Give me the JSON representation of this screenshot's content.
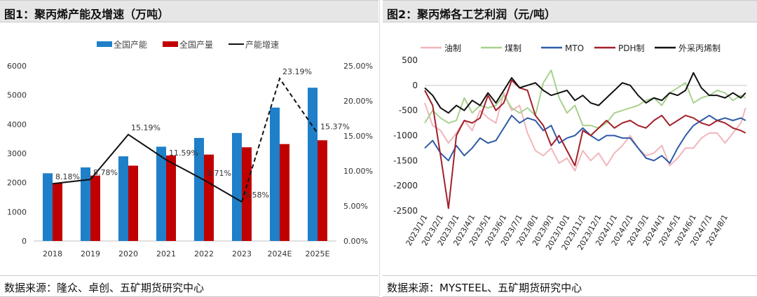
{
  "left_panel": {
    "title": "图1：聚丙烯产能及增速（万吨）",
    "source": "数据来源：隆众、卓创、五矿期货研究中心"
  },
  "right_panel": {
    "title": "图2：聚丙烯各工艺利润（元/吨）",
    "source": "数据来源：MYSTEEL、五矿期货研究中心"
  },
  "colors": {
    "capacity": "#1f7fc9",
    "output": "#c00000",
    "growth": "#111111",
    "oil": "#f2b5bb",
    "coal": "#a9d18e",
    "mto": "#2e5aa8",
    "pdh": "#a3202a",
    "outsource": "#111111"
  },
  "chart_data": [
    {
      "type": "bar",
      "categories": [
        "2018",
        "2019",
        "2020",
        "2021",
        "2022",
        "2023",
        "2024E",
        "2025E"
      ],
      "series": [
        {
          "name": "全国产能",
          "kind": "bar",
          "axis": "left",
          "values": [
            2320,
            2520,
            2900,
            3230,
            3530,
            3700,
            4570,
            5250
          ]
        },
        {
          "name": "全国产量",
          "kind": "bar",
          "axis": "left",
          "values": [
            1980,
            2240,
            2580,
            2930,
            2960,
            3210,
            3320,
            3450
          ]
        },
        {
          "name": "产能增速",
          "kind": "line",
          "axis": "right",
          "values": [
            8.18,
            8.78,
            15.19,
            11.59,
            8.71,
            5.58,
            23.19,
            15.37
          ],
          "labels": [
            "8.18%",
            "8.78%",
            "15.19%",
            "11.59%",
            "8.71%",
            "5.58%",
            "23.19%",
            "15.37%"
          ],
          "dashed_from_index": 5
        }
      ],
      "ylim_left": [
        0,
        6000
      ],
      "yticks_left": [
        "0",
        "1000",
        "2000",
        "3000",
        "4000",
        "5000",
        "6000"
      ],
      "ylim_right": [
        0,
        25
      ],
      "yticks_right": [
        "0.00%",
        "5.00%",
        "10.00%",
        "15.00%",
        "20.00%",
        "25.00%"
      ],
      "legend_position": "top"
    },
    {
      "type": "line",
      "x_ticks": [
        "2023/1/1",
        "2023/2/1",
        "2023/3/1",
        "2023/4/1",
        "2023/5/1",
        "2023/6/1",
        "2023/7/1",
        "2023/8/1",
        "2023/9/1",
        "2023/10/1",
        "2023/11/1",
        "2023/12/1",
        "2024/1/1",
        "2024/2/1",
        "2024/3/1",
        "2024/4/1",
        "2024/5/1",
        "2024/6/1",
        "2024/7/1",
        "2024/8/1"
      ],
      "x_range": [
        0,
        20.4
      ],
      "ylim": [
        -2500,
        500
      ],
      "yticks": [
        "500",
        "0",
        "-500",
        "-1000",
        "-1500",
        "-2000",
        "-2500"
      ],
      "legend_position": "top",
      "series": [
        {
          "name": "油制",
          "x": [
            0,
            0.5,
            1,
            1.5,
            2,
            2.5,
            3,
            3.5,
            4,
            4.5,
            5,
            5.5,
            6,
            6.5,
            7,
            7.5,
            8,
            8.5,
            9,
            9.5,
            10,
            10.5,
            11,
            11.5,
            12,
            12.5,
            13,
            13.5,
            14,
            14.5,
            15,
            15.5,
            16,
            16.5,
            17,
            17.5,
            18,
            18.5,
            19,
            19.5,
            20,
            20.3
          ],
          "values": [
            -350,
            -800,
            -900,
            -1150,
            -950,
            -700,
            -900,
            -500,
            -650,
            -750,
            -150,
            -500,
            -400,
            -950,
            -1300,
            -1400,
            -1250,
            -1550,
            -1450,
            -1700,
            -1300,
            -1500,
            -1350,
            -1600,
            -1350,
            -1200,
            -1000,
            -1250,
            -1400,
            -1350,
            -1200,
            -1600,
            -1450,
            -1250,
            -1250,
            -1050,
            -950,
            -950,
            -1150,
            -950,
            -750,
            -450
          ]
        },
        {
          "name": "煤制",
          "x": [
            0,
            0.5,
            1,
            1.5,
            2,
            2.5,
            3,
            3.5,
            4,
            4.5,
            5,
            5.5,
            6,
            6.5,
            7,
            7.5,
            8,
            8.5,
            9,
            9.5,
            10,
            10.5,
            11,
            11.5,
            12,
            12.5,
            13,
            13.5,
            14,
            14.5,
            15,
            15.5,
            16,
            16.5,
            17,
            17.5,
            18,
            18.5,
            19,
            19.5,
            20,
            20.3
          ],
          "values": [
            -750,
            -500,
            -650,
            -750,
            -700,
            -250,
            -550,
            -400,
            -450,
            -400,
            -200,
            -450,
            -550,
            -450,
            -600,
            50,
            300,
            -250,
            -550,
            -400,
            -800,
            -800,
            -850,
            -750,
            -550,
            -500,
            -450,
            -400,
            -300,
            -250,
            -400,
            -150,
            -50,
            50,
            -350,
            -250,
            -200,
            -100,
            -150,
            -300,
            -200,
            -250
          ]
        },
        {
          "name": "MTO",
          "x": [
            0,
            0.5,
            1,
            1.5,
            2,
            2.5,
            3,
            3.5,
            4,
            4.5,
            5,
            5.5,
            6,
            6.5,
            7,
            7.5,
            8,
            8.5,
            9,
            9.5,
            10,
            10.5,
            11,
            11.5,
            12,
            12.5,
            13,
            13.5,
            14,
            14.5,
            15,
            15.5,
            16,
            16.5,
            17,
            17.5,
            18,
            18.5,
            19,
            19.5,
            20,
            20.3
          ],
          "values": [
            -1250,
            -1100,
            -1350,
            -1500,
            -1200,
            -1400,
            -1250,
            -1050,
            -1150,
            -1100,
            -850,
            -600,
            -750,
            -650,
            -700,
            -900,
            -800,
            -1150,
            -1050,
            -1000,
            -850,
            -1000,
            -1100,
            -1000,
            -1000,
            -1050,
            -1050,
            -1250,
            -1450,
            -1500,
            -1400,
            -1550,
            -1250,
            -1000,
            -800,
            -700,
            -600,
            -700,
            -650,
            -700,
            -650,
            -700
          ]
        },
        {
          "name": "PDH制",
          "x": [
            0,
            0.5,
            1,
            1.5,
            2,
            2.5,
            3,
            3.5,
            4,
            4.5,
            5,
            5.5,
            6,
            6.5,
            7,
            7.5,
            8,
            8.5,
            9,
            9.5,
            10,
            10.5,
            11,
            11.5,
            12,
            12.5,
            13,
            13.5,
            14,
            14.5,
            15,
            15.5,
            16,
            16.5,
            17,
            17.5,
            18,
            18.5,
            19,
            19.5,
            20,
            20.3
          ],
          "values": [
            -100,
            -400,
            -1400,
            -2450,
            -1000,
            -700,
            -750,
            -650,
            -200,
            -500,
            -350,
            100,
            -50,
            -100,
            -600,
            -800,
            -1200,
            -1000,
            -1300,
            -1600,
            -900,
            -1000,
            -850,
            -700,
            -850,
            -750,
            -700,
            -800,
            -850,
            -700,
            -600,
            -800,
            -700,
            -600,
            -650,
            -750,
            -800,
            -700,
            -750,
            -850,
            -900,
            -950
          ]
        },
        {
          "name": "外采丙烯制",
          "x": [
            0,
            0.5,
            1,
            1.5,
            2,
            2.5,
            3,
            3.5,
            4,
            4.5,
            5,
            5.5,
            6,
            6.5,
            7,
            7.5,
            8,
            8.5,
            9,
            9.5,
            10,
            10.5,
            11,
            11.5,
            12,
            12.5,
            13,
            13.5,
            14,
            14.5,
            15,
            15.5,
            16,
            16.5,
            17,
            17.5,
            18,
            18.5,
            19,
            19.5,
            20,
            20.3
          ],
          "values": [
            -50,
            -200,
            -450,
            -550,
            -400,
            -500,
            -300,
            -400,
            -150,
            -350,
            -100,
            150,
            -50,
            0,
            50,
            -100,
            -200,
            -150,
            -100,
            -300,
            -200,
            -350,
            -400,
            -250,
            -100,
            50,
            0,
            -200,
            -350,
            -250,
            -300,
            -150,
            -200,
            -100,
            250,
            -50,
            -200,
            -200,
            -250,
            -150,
            -250,
            -150
          ]
        }
      ]
    }
  ]
}
